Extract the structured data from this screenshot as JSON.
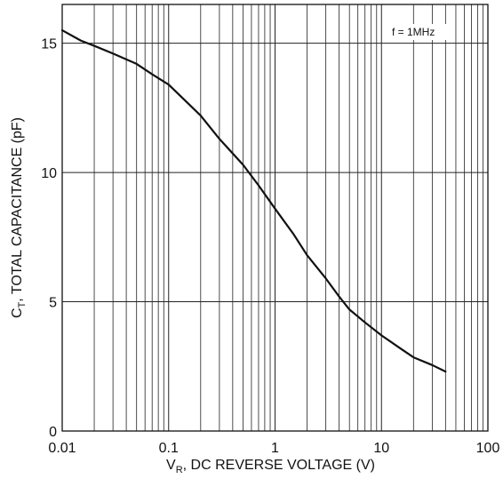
{
  "chart_data": {
    "type": "line",
    "xscale": "log",
    "xlim": [
      0.01,
      100
    ],
    "ylim": [
      0,
      16.5
    ],
    "grid": true,
    "xlabel_parts": {
      "main": "V",
      "sub": "R",
      "rest": ", DC REVERSE VOLTAGE (V)"
    },
    "ylabel_parts": {
      "main": "C",
      "sub": "T",
      "rest": ", TOTAL CAPACITANCE (pF)"
    },
    "annotation": "f = 1MHz",
    "x_ticks": [
      {
        "value": 0.01,
        "label": "0.01"
      },
      {
        "value": 0.1,
        "label": "0.1"
      },
      {
        "value": 1,
        "label": "1"
      },
      {
        "value": 10,
        "label": "10"
      },
      {
        "value": 100,
        "label": "100"
      }
    ],
    "y_ticks": [
      {
        "value": 0,
        "label": "0"
      },
      {
        "value": 5,
        "label": "5"
      },
      {
        "value": 10,
        "label": "10"
      },
      {
        "value": 15,
        "label": "15"
      }
    ],
    "series": [
      {
        "x": [
          0.01,
          0.015,
          0.02,
          0.03,
          0.05,
          0.07,
          0.1,
          0.15,
          0.2,
          0.3,
          0.5,
          0.7,
          1,
          1.5,
          2,
          3,
          4,
          5,
          7,
          10,
          15,
          20,
          30,
          40
        ],
        "y": [
          15.5,
          15.1,
          14.9,
          14.6,
          14.2,
          13.8,
          13.4,
          12.7,
          12.2,
          11.3,
          10.3,
          9.5,
          8.6,
          7.6,
          6.8,
          5.9,
          5.2,
          4.7,
          4.2,
          3.7,
          3.2,
          2.85,
          2.55,
          2.3
        ]
      }
    ]
  }
}
